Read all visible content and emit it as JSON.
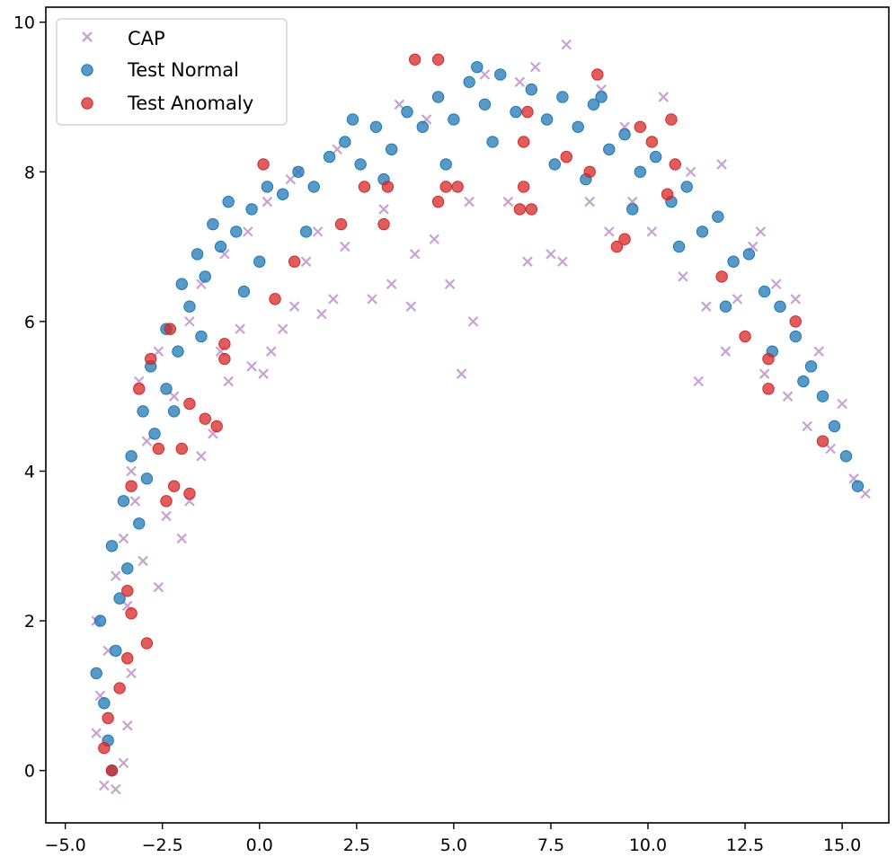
{
  "chart_data": {
    "type": "scatter",
    "title": "",
    "xlabel": "",
    "ylabel": "",
    "xlim": [
      -5.5,
      16.2
    ],
    "ylim": [
      -0.7,
      10.2
    ],
    "xticks": [
      -5.0,
      -2.5,
      0.0,
      2.5,
      5.0,
      7.5,
      10.0,
      12.5,
      15.0
    ],
    "xtick_labels": [
      "−5.0",
      "−2.5",
      "0.0",
      "2.5",
      "5.0",
      "7.5",
      "10.0",
      "12.5",
      "15.0"
    ],
    "yticks": [
      0,
      2,
      4,
      6,
      8,
      10
    ],
    "ytick_labels": [
      "0",
      "2",
      "4",
      "6",
      "8",
      "10"
    ],
    "grid": false,
    "legend_position": "top-left",
    "series": [
      {
        "name": "CAP",
        "marker": "x",
        "color": "#c8a2d2",
        "points": [
          [
            -4.0,
            -0.2
          ],
          [
            -3.7,
            -0.25
          ],
          [
            -3.5,
            0.1
          ],
          [
            -4.2,
            0.5
          ],
          [
            -3.4,
            0.6
          ],
          [
            -4.1,
            1.0
          ],
          [
            -3.3,
            1.3
          ],
          [
            -3.9,
            1.6
          ],
          [
            -4.2,
            2.0
          ],
          [
            -3.4,
            2.2
          ],
          [
            -3.7,
            2.6
          ],
          [
            -3.0,
            2.8
          ],
          [
            -3.5,
            3.1
          ],
          [
            -2.6,
            2.45
          ],
          [
            -2.4,
            3.4
          ],
          [
            -3.2,
            3.6
          ],
          [
            -2.0,
            3.1
          ],
          [
            -1.8,
            3.6
          ],
          [
            -3.3,
            4.0
          ],
          [
            -1.5,
            4.2
          ],
          [
            -2.9,
            4.4
          ],
          [
            -1.2,
            4.5
          ],
          [
            -2.2,
            5.0
          ],
          [
            -3.1,
            5.2
          ],
          [
            -1.0,
            5.6
          ],
          [
            -2.6,
            5.6
          ],
          [
            -0.8,
            5.2
          ],
          [
            -0.5,
            5.9
          ],
          [
            -1.8,
            6.0
          ],
          [
            -0.2,
            5.4
          ],
          [
            -1.5,
            6.5
          ],
          [
            0.1,
            5.3
          ],
          [
            0.3,
            5.6
          ],
          [
            -0.9,
            6.9
          ],
          [
            0.6,
            5.9
          ],
          [
            -0.3,
            7.2
          ],
          [
            0.9,
            6.2
          ],
          [
            0.2,
            7.6
          ],
          [
            1.2,
            6.8
          ],
          [
            0.8,
            7.9
          ],
          [
            1.6,
            6.1
          ],
          [
            1.5,
            7.2
          ],
          [
            1.9,
            6.3
          ],
          [
            2.2,
            7.0
          ],
          [
            2.0,
            8.3
          ],
          [
            2.9,
            6.3
          ],
          [
            3.4,
            6.5
          ],
          [
            3.2,
            7.5
          ],
          [
            3.9,
            6.2
          ],
          [
            4.0,
            6.9
          ],
          [
            4.5,
            7.1
          ],
          [
            4.3,
            8.7
          ],
          [
            4.9,
            6.5
          ],
          [
            5.2,
            5.3
          ],
          [
            5.5,
            6.0
          ],
          [
            5.4,
            7.6
          ],
          [
            5.8,
            9.3
          ],
          [
            6.4,
            7.6
          ],
          [
            6.9,
            6.8
          ],
          [
            7.5,
            6.9
          ],
          [
            7.9,
            9.7
          ],
          [
            7.1,
            9.4
          ],
          [
            8.5,
            7.6
          ],
          [
            9.0,
            7.2
          ],
          [
            8.8,
            9.1
          ],
          [
            9.6,
            7.6
          ],
          [
            10.1,
            7.2
          ],
          [
            10.4,
            9.0
          ],
          [
            10.9,
            6.6
          ],
          [
            11.1,
            8.0
          ],
          [
            11.5,
            6.2
          ],
          [
            11.3,
            5.2
          ],
          [
            11.9,
            8.1
          ],
          [
            12.3,
            6.3
          ],
          [
            12.0,
            5.6
          ],
          [
            12.7,
            7.0
          ],
          [
            13.0,
            5.3
          ],
          [
            13.3,
            6.5
          ],
          [
            13.6,
            5.0
          ],
          [
            13.8,
            6.3
          ],
          [
            14.1,
            4.6
          ],
          [
            14.4,
            5.6
          ],
          [
            14.7,
            4.3
          ],
          [
            15.0,
            4.9
          ],
          [
            15.3,
            3.9
          ],
          [
            15.6,
            3.7
          ],
          [
            9.4,
            8.6
          ],
          [
            6.7,
            9.2
          ],
          [
            3.6,
            8.9
          ],
          [
            1.0,
            8.0
          ],
          [
            7.8,
            6.8
          ],
          [
            12.9,
            7.2
          ]
        ]
      },
      {
        "name": "Test Normal",
        "marker": "o",
        "color": "#1f77b4",
        "points": [
          [
            -3.8,
            0.0
          ],
          [
            -3.9,
            0.4
          ],
          [
            -4.0,
            0.9
          ],
          [
            -4.2,
            1.3
          ],
          [
            -3.7,
            1.6
          ],
          [
            -4.1,
            2.0
          ],
          [
            -3.6,
            2.3
          ],
          [
            -3.4,
            2.7
          ],
          [
            -3.8,
            3.0
          ],
          [
            -3.1,
            3.3
          ],
          [
            -3.5,
            3.6
          ],
          [
            -2.9,
            3.9
          ],
          [
            -3.3,
            4.2
          ],
          [
            -2.7,
            4.5
          ],
          [
            -3.0,
            4.8
          ],
          [
            -2.4,
            5.1
          ],
          [
            -2.8,
            5.4
          ],
          [
            -2.1,
            5.6
          ],
          [
            -2.4,
            5.9
          ],
          [
            -1.8,
            6.2
          ],
          [
            -2.0,
            6.5
          ],
          [
            -1.4,
            6.6
          ],
          [
            -1.6,
            6.9
          ],
          [
            -1.0,
            7.0
          ],
          [
            -1.2,
            7.3
          ],
          [
            -0.6,
            7.2
          ],
          [
            -0.8,
            7.6
          ],
          [
            -0.2,
            7.5
          ],
          [
            0.2,
            7.8
          ],
          [
            0.6,
            7.7
          ],
          [
            1.0,
            8.0
          ],
          [
            1.4,
            7.8
          ],
          [
            1.8,
            8.2
          ],
          [
            2.2,
            8.4
          ],
          [
            2.6,
            8.1
          ],
          [
            3.0,
            8.6
          ],
          [
            3.4,
            8.3
          ],
          [
            3.8,
            8.8
          ],
          [
            4.2,
            8.6
          ],
          [
            4.6,
            9.0
          ],
          [
            5.0,
            8.7
          ],
          [
            5.4,
            9.2
          ],
          [
            5.8,
            8.9
          ],
          [
            6.2,
            9.3
          ],
          [
            6.6,
            8.8
          ],
          [
            7.0,
            9.1
          ],
          [
            7.4,
            8.7
          ],
          [
            7.8,
            9.0
          ],
          [
            8.2,
            8.6
          ],
          [
            8.6,
            8.9
          ],
          [
            9.0,
            8.3
          ],
          [
            9.4,
            8.5
          ],
          [
            9.8,
            8.0
          ],
          [
            10.2,
            8.2
          ],
          [
            10.6,
            7.6
          ],
          [
            11.0,
            7.8
          ],
          [
            11.4,
            7.2
          ],
          [
            11.8,
            7.4
          ],
          [
            12.2,
            6.8
          ],
          [
            12.6,
            6.9
          ],
          [
            13.0,
            6.4
          ],
          [
            13.4,
            6.2
          ],
          [
            13.8,
            5.8
          ],
          [
            14.2,
            5.4
          ],
          [
            14.5,
            5.0
          ],
          [
            14.8,
            4.6
          ],
          [
            15.1,
            4.2
          ],
          [
            15.4,
            3.8
          ],
          [
            -2.2,
            4.8
          ],
          [
            -1.5,
            5.8
          ],
          [
            0.0,
            6.8
          ],
          [
            1.2,
            7.2
          ],
          [
            3.2,
            7.9
          ],
          [
            4.8,
            8.1
          ],
          [
            6.0,
            8.4
          ],
          [
            7.6,
            8.1
          ],
          [
            8.4,
            7.9
          ],
          [
            9.6,
            7.5
          ],
          [
            10.8,
            7.0
          ],
          [
            12.0,
            6.2
          ],
          [
            13.2,
            5.6
          ],
          [
            14.0,
            5.2
          ],
          [
            5.6,
            9.4
          ],
          [
            8.8,
            9.0
          ],
          [
            2.4,
            8.7
          ],
          [
            -0.4,
            6.4
          ]
        ]
      },
      {
        "name": "Test Anomaly",
        "marker": "o",
        "color": "#d62728",
        "points": [
          [
            -3.8,
            0.0
          ],
          [
            -4.0,
            0.3
          ],
          [
            -3.9,
            0.7
          ],
          [
            -3.6,
            1.1
          ],
          [
            -3.4,
            1.5
          ],
          [
            -2.9,
            1.7
          ],
          [
            -3.3,
            2.1
          ],
          [
            -3.4,
            2.4
          ],
          [
            -3.3,
            3.8
          ],
          [
            -2.4,
            3.6
          ],
          [
            -2.2,
            3.8
          ],
          [
            -1.8,
            3.7
          ],
          [
            -2.0,
            4.3
          ],
          [
            -2.6,
            4.3
          ],
          [
            -1.4,
            4.7
          ],
          [
            -1.1,
            4.6
          ],
          [
            -1.8,
            4.9
          ],
          [
            -3.1,
            5.1
          ],
          [
            -2.8,
            5.5
          ],
          [
            -2.3,
            5.9
          ],
          [
            -0.9,
            5.7
          ],
          [
            -0.9,
            5.5
          ],
          [
            0.4,
            6.3
          ],
          [
            0.9,
            6.8
          ],
          [
            0.1,
            8.1
          ],
          [
            2.1,
            7.3
          ],
          [
            2.7,
            7.8
          ],
          [
            3.2,
            7.3
          ],
          [
            3.3,
            7.8
          ],
          [
            4.0,
            9.5
          ],
          [
            4.6,
            9.5
          ],
          [
            4.8,
            7.8
          ],
          [
            4.6,
            7.6
          ],
          [
            5.1,
            7.8
          ],
          [
            6.7,
            7.5
          ],
          [
            7.0,
            7.5
          ],
          [
            6.8,
            7.8
          ],
          [
            6.8,
            8.4
          ],
          [
            6.9,
            8.8
          ],
          [
            7.9,
            8.2
          ],
          [
            8.5,
            8.0
          ],
          [
            8.7,
            9.3
          ],
          [
            9.2,
            7.0
          ],
          [
            9.4,
            7.1
          ],
          [
            9.8,
            8.6
          ],
          [
            10.1,
            8.4
          ],
          [
            10.5,
            7.7
          ],
          [
            10.6,
            8.7
          ],
          [
            10.7,
            8.1
          ],
          [
            11.9,
            6.6
          ],
          [
            12.5,
            5.8
          ],
          [
            13.1,
            5.5
          ],
          [
            13.1,
            5.1
          ],
          [
            13.8,
            6.0
          ],
          [
            14.5,
            4.4
          ]
        ]
      }
    ]
  }
}
